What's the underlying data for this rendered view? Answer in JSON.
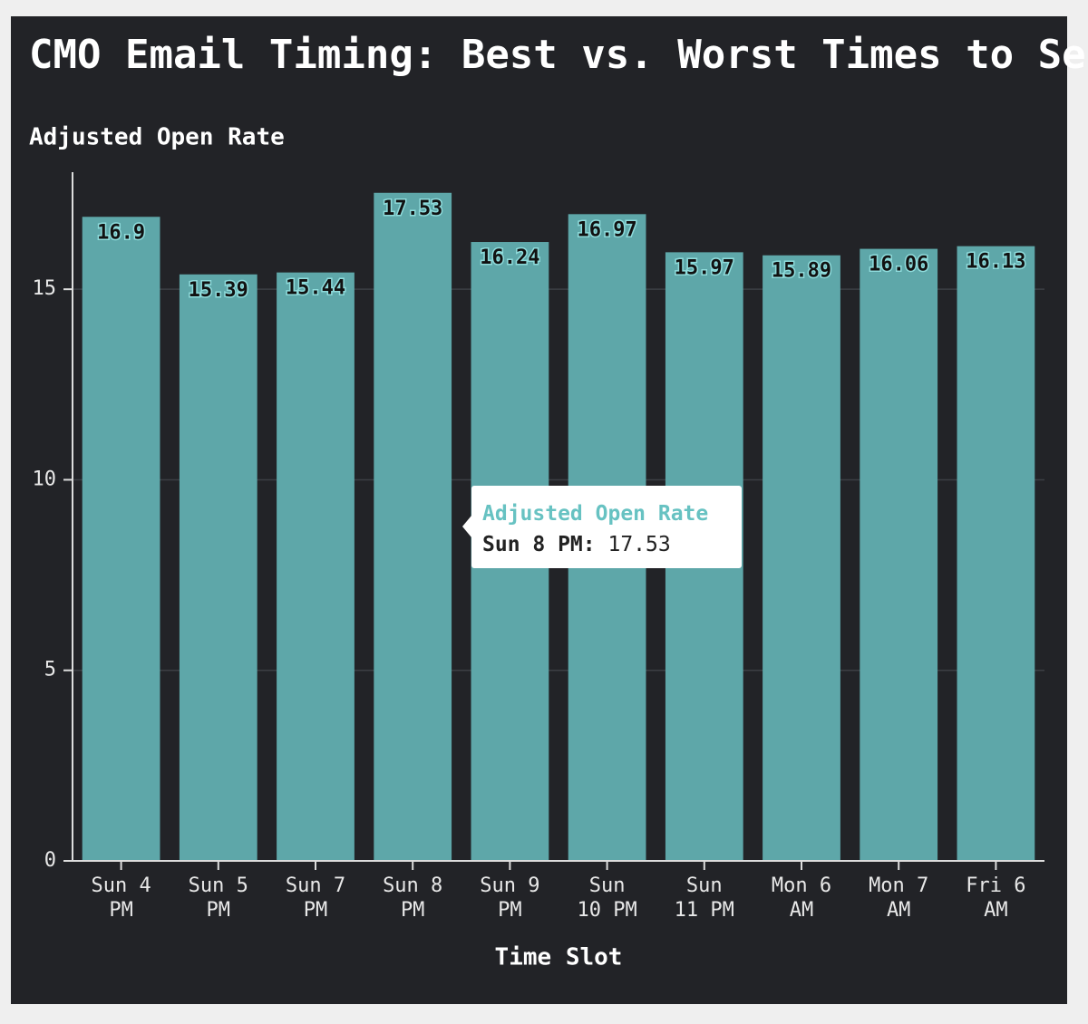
{
  "chart_data": {
    "type": "bar",
    "title": "CMO Email Timing: Best vs. Worst Times to Send",
    "y_label": "Adjusted Open Rate",
    "x_label": "Time Slot",
    "categories": [
      "Sun 4 PM",
      "Sun 5 PM",
      "Sun 7 PM",
      "Sun 8 PM",
      "Sun 9 PM",
      "Sun 10 PM",
      "Sun 11 PM",
      "Mon 6 AM",
      "Mon 7 AM",
      "Fri 6 AM"
    ],
    "values": [
      16.9,
      15.39,
      15.44,
      17.53,
      16.24,
      16.97,
      15.97,
      15.89,
      16.06,
      16.13
    ],
    "color": "#5ea7a9",
    "ylim": [
      0,
      18
    ],
    "yticks": [
      0,
      5,
      10,
      15
    ],
    "grid": true,
    "tooltip": {
      "title": "Adjusted Open Rate",
      "label": "Sun 8 PM:",
      "value": 17.53
    }
  }
}
